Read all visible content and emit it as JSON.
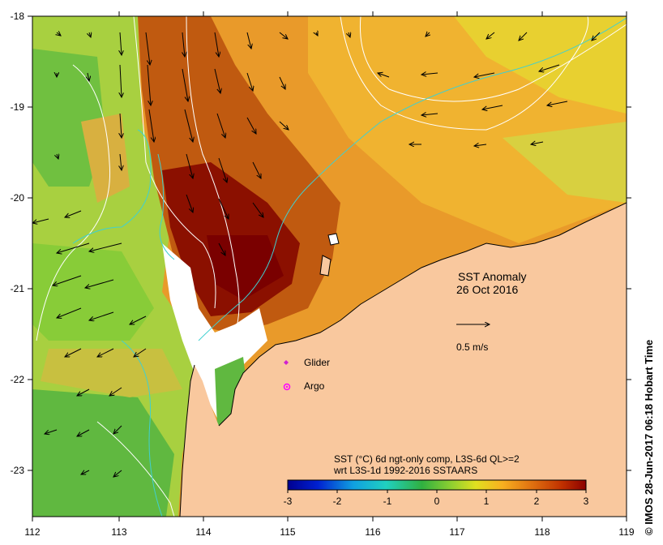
{
  "map": {
    "lon_ticks": [
      "112",
      "113",
      "114",
      "115",
      "116",
      "117",
      "118",
      "119"
    ],
    "lat_ticks": [
      "-18",
      "-19",
      "-20",
      "-21",
      "-22",
      "-23"
    ],
    "title_line1": "SST Anomaly",
    "title_line2": "26 Oct 2016",
    "scale_label": "0.5 m/s",
    "legend_glider": "Glider",
    "legend_argo": "Argo",
    "colorbar_title1": "SST (°C) 6d ngt-only comp, L3S-6d QL>=2",
    "colorbar_title2": "wrt L3S-1d 1992-2016 SSTAARS",
    "colorbar_ticks": [
      "-3",
      "-2",
      "-1",
      "0",
      "1",
      "2",
      "3"
    ],
    "credit": "© IMOS 28-Jun-2017 06:18 Hobart Time",
    "colors": {
      "land": "#f9c89e",
      "cold": "#000090",
      "warm": "#8b0000",
      "glider": "#d020d0",
      "argo": "#ff00ff",
      "contour_cyan": "#40d0d0"
    }
  }
}
